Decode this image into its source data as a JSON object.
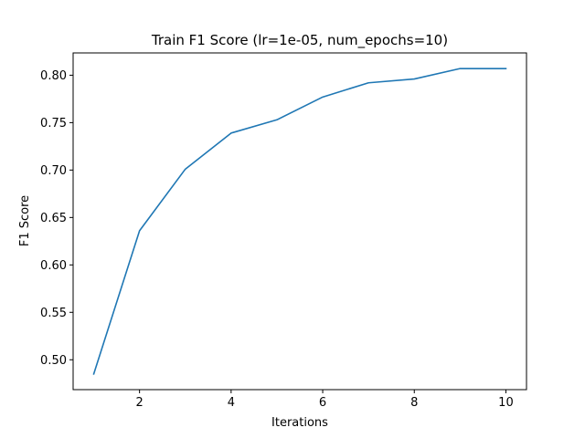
{
  "chart_data": {
    "type": "line",
    "title": "Train F1 Score (lr=1e-05, num_epochs=10)",
    "xlabel": "Iterations",
    "ylabel": "F1 Score",
    "xlim": [
      0.55,
      10.45
    ],
    "ylim": [
      0.4685,
      0.8235
    ],
    "xticks": [
      2,
      4,
      6,
      8,
      10
    ],
    "yticks": [
      0.5,
      0.55,
      0.6,
      0.65,
      0.7,
      0.75,
      0.8
    ],
    "xtick_labels": [
      "2",
      "4",
      "6",
      "8",
      "10"
    ],
    "ytick_labels": [
      "0.50",
      "0.55",
      "0.60",
      "0.65",
      "0.70",
      "0.75",
      "0.80"
    ],
    "grid": false,
    "legend": "none",
    "series": [
      {
        "x": [
          1,
          2,
          3,
          4,
          5,
          6,
          7,
          8,
          9,
          10
        ],
        "values": [
          0.485,
          0.636,
          0.701,
          0.739,
          0.753,
          0.777,
          0.792,
          0.796,
          0.807,
          0.807
        ],
        "color": "#1f77b4"
      }
    ]
  }
}
